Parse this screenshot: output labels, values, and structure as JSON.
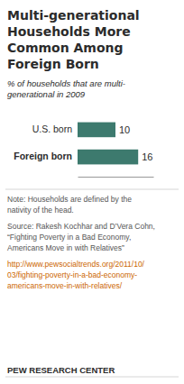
{
  "chart_data": {
    "type": "bar",
    "orientation": "horizontal",
    "title": [
      "Multi-generational",
      "Households More",
      "Common Among",
      "Foreign Born"
    ],
    "subtitle": [
      "% of households that are multi-",
      "generational in 2009"
    ],
    "categories": [
      "U.S. born",
      "Foreign born"
    ],
    "values": [
      10,
      16
    ],
    "color": "#3d7a6e",
    "xlim": [
      0,
      20
    ],
    "data_labels": true,
    "tick_labels": "y",
    "grid": false,
    "annotations": [
      {
        "lines": [
          "Note: Households are defined by the",
          "nativity of the head."
        ],
        "color": "#555555"
      },
      {
        "lines": [
          "Source: Rakesh Kochhar and D’Vera Cohn,",
          "“Fighting Poverty in a Bad Economy,",
          "Americans Move in with Relatives”"
        ],
        "color": "#555555"
      },
      {
        "lines": [
          "http://www.pewsocialtrends.org/2011/10/",
          "03/fighting-poverty-in-a-bad-economy-",
          "americans-move-in-with-relatives/"
        ],
        "color": "#cc6600"
      },
      {
        "lines": [
          "PEW RESEARCH CENTER"
        ],
        "color": "#2b2b2b"
      }
    ]
  }
}
